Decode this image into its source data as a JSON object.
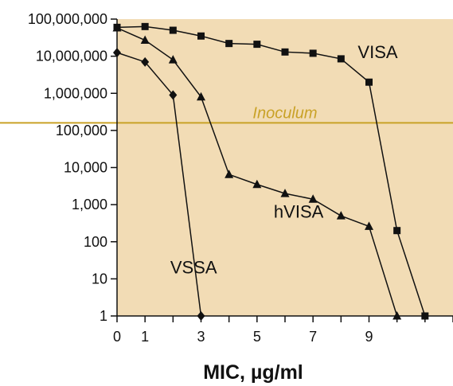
{
  "chart_data": {
    "type": "line",
    "x_title": "MIC, µg/ml",
    "y_scale": "log",
    "xlim": [
      0,
      12
    ],
    "ylim": [
      1,
      100000000
    ],
    "x_ticks": [
      0,
      1,
      3,
      5,
      7,
      9
    ],
    "x_minor_ticks": [
      0,
      1,
      2,
      3,
      4,
      5,
      6,
      7,
      8,
      9,
      10,
      11,
      12
    ],
    "y_ticks": [
      {
        "value": 1,
        "label": "1"
      },
      {
        "value": 10,
        "label": "10"
      },
      {
        "value": 100,
        "label": "100"
      },
      {
        "value": 1000,
        "label": "1,000"
      },
      {
        "value": 10000,
        "label": "10,000"
      },
      {
        "value": 100000,
        "label": "100,000"
      },
      {
        "value": 1000000,
        "label": "1,000,000"
      },
      {
        "value": 10000000,
        "label": "10,000,000"
      },
      {
        "value": 100000000,
        "label": "100,000,000"
      }
    ],
    "background_color": "#f2dcb5",
    "reference_line": {
      "label": "Inoculum",
      "value": 160000,
      "color": "#c9a227"
    },
    "series": [
      {
        "name": "VISA",
        "marker": "square",
        "label_at": {
          "x": 8.6,
          "y": 9000000
        },
        "points": [
          {
            "x": 0,
            "y": 60000000
          },
          {
            "x": 1,
            "y": 63000000
          },
          {
            "x": 2,
            "y": 50000000
          },
          {
            "x": 3,
            "y": 35000000
          },
          {
            "x": 4,
            "y": 22000000
          },
          {
            "x": 5,
            "y": 21000000
          },
          {
            "x": 6,
            "y": 13000000
          },
          {
            "x": 7,
            "y": 12000000
          },
          {
            "x": 8,
            "y": 8500000
          },
          {
            "x": 9,
            "y": 2000000
          },
          {
            "x": 10,
            "y": 200
          },
          {
            "x": 11,
            "y": 1
          }
        ]
      },
      {
        "name": "hVISA",
        "marker": "triangle",
        "label_at": {
          "x": 5.6,
          "y": 450
        },
        "points": [
          {
            "x": 0,
            "y": 58000000
          },
          {
            "x": 1,
            "y": 27000000
          },
          {
            "x": 2,
            "y": 8000000
          },
          {
            "x": 3,
            "y": 800000
          },
          {
            "x": 4,
            "y": 6500
          },
          {
            "x": 5,
            "y": 3500
          },
          {
            "x": 6,
            "y": 2000
          },
          {
            "x": 7,
            "y": 1400
          },
          {
            "x": 8,
            "y": 500
          },
          {
            "x": 9,
            "y": 260
          },
          {
            "x": 10,
            "y": 1
          }
        ]
      },
      {
        "name": "VSSA",
        "marker": "diamond",
        "label_at": {
          "x": 1.9,
          "y": 14
        },
        "points": [
          {
            "x": 0,
            "y": 12500000
          },
          {
            "x": 1,
            "y": 7000000
          },
          {
            "x": 2,
            "y": 900000
          },
          {
            "x": 3,
            "y": 1
          }
        ]
      }
    ]
  }
}
